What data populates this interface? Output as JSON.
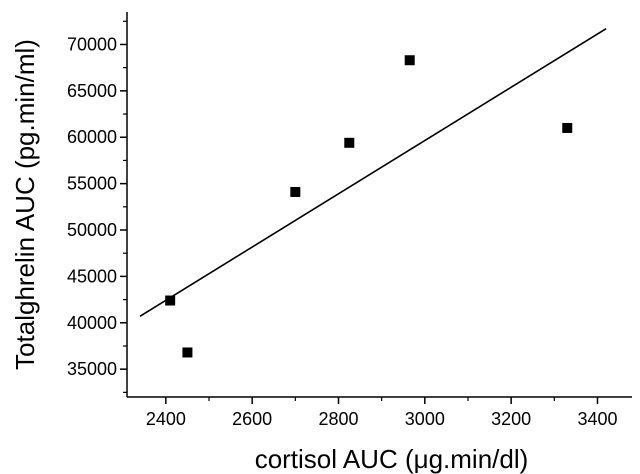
{
  "chart_data": {
    "type": "scatter",
    "title": "",
    "xlabel": "cortisol AUC (μg.min/dl)",
    "ylabel": "Totalghrelin AUC (pg.min/ml)",
    "xlim": [
      2310,
      3480
    ],
    "ylim": [
      32000,
      73500
    ],
    "xticks": [
      2400,
      2600,
      2800,
      3000,
      3200,
      3400
    ],
    "yticks": [
      35000,
      40000,
      45000,
      50000,
      55000,
      60000,
      65000,
      70000
    ],
    "grid": false,
    "series": [
      {
        "marker": "square",
        "color": "#000000",
        "points": [
          {
            "x": 2410,
            "y": 42400
          },
          {
            "x": 2450,
            "y": 36800
          },
          {
            "x": 2700,
            "y": 54100
          },
          {
            "x": 2825,
            "y": 59400
          },
          {
            "x": 2965,
            "y": 68300
          },
          {
            "x": 3330,
            "y": 61000
          }
        ]
      }
    ],
    "fit_line": {
      "type": "linear",
      "color": "#000000",
      "points": [
        {
          "x": 2340,
          "y": 40700
        },
        {
          "x": 3420,
          "y": 71700
        }
      ]
    }
  }
}
